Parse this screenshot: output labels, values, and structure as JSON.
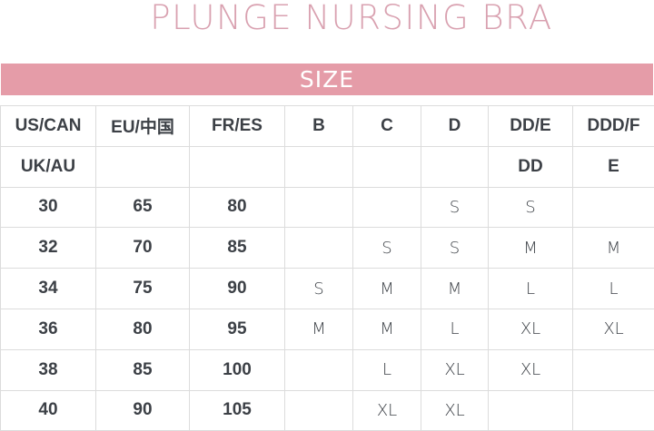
{
  "title": "PLUNGE NURSING BRA",
  "band": "SIZE",
  "header_rows": [
    [
      "US/CAN",
      "EU/中国",
      "FR/ES",
      "B",
      "C",
      "D",
      "DD/E",
      "DDD/F"
    ],
    [
      "UK/AU",
      "",
      "",
      "",
      "",
      "",
      "DD",
      "E"
    ]
  ],
  "rows": [
    [
      "30",
      "65",
      "80",
      "",
      "",
      "S",
      "S",
      ""
    ],
    [
      "32",
      "70",
      "85",
      "",
      "S",
      "S",
      "M",
      "M"
    ],
    [
      "34",
      "75",
      "90",
      "S",
      "M",
      "M",
      "L",
      "L"
    ],
    [
      "36",
      "80",
      "95",
      "M",
      "M",
      "L",
      "XL",
      "XL"
    ],
    [
      "38",
      "85",
      "100",
      "",
      "L",
      "XL",
      "XL",
      ""
    ],
    [
      "40",
      "90",
      "105",
      "",
      "XL",
      "XL",
      "",
      ""
    ]
  ],
  "colors": {
    "title": "#d9a1b0",
    "band": "#e59ca8",
    "text": "#3c4046",
    "grid": "#dcdcdc"
  }
}
